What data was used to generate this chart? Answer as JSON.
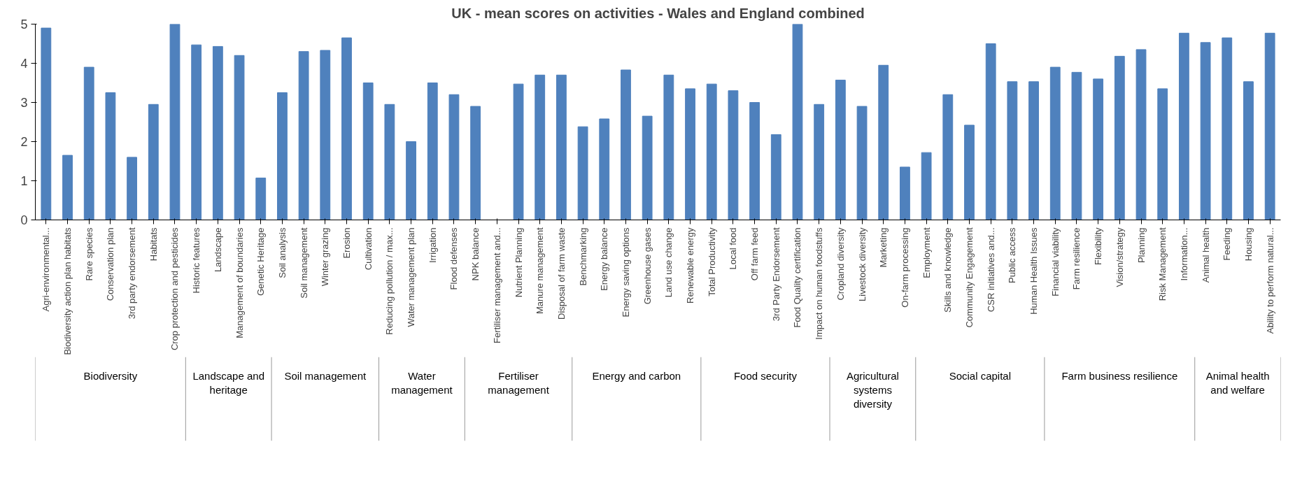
{
  "chart_data": {
    "type": "bar",
    "title": "UK - mean scores on activities - Wales and England combined",
    "categories": [
      "Agri-environmental...",
      "Biodiversity action plan habitats",
      "Rare species",
      "Conservation plan",
      "3rd party endorsement",
      "Habitats",
      "Crop protection and pesticides",
      "Historic features",
      "Landscape",
      "Management of boundaries",
      "Genetic Heritage",
      "Soil analysis",
      "Soil management",
      "Winter grazing",
      "Erosion",
      "Cultivation",
      "Reducing pollution / max...",
      "Water management plan",
      "Irrigation",
      "Flood defenses",
      "NPK balance",
      "Fertiliser management and...",
      "Nutrient Planning",
      "Manure management",
      "Disposal of farm waste",
      "Benchmarking",
      "Energy balance",
      "Energy saving options",
      "Greenhouse gases",
      "Land use change",
      "Renewable energy",
      "Total Productivity",
      "Local food",
      "Off farm feed",
      "3rd Party Endorsement",
      "Food Quality certification",
      "Impact on human foodstuffs",
      "Cropland diversity",
      "Livestock diversity",
      "Marketing",
      "On-farm processing",
      "Employment",
      "Skills and knowledge",
      "Community Engagement",
      "CSR initiatives and...",
      "Public access",
      "Human Health Issues",
      "Financial viability",
      "Farm resilience",
      "Flexibility",
      "Vision/strategy",
      "Planning",
      "Risk Management",
      "Information...",
      "Animal health",
      "Feeding",
      "Housing",
      "Ability to perform natural..."
    ],
    "values": [
      4.9,
      1.65,
      3.9,
      3.25,
      1.6,
      2.95,
      5.0,
      4.47,
      4.43,
      4.2,
      1.07,
      3.25,
      4.3,
      4.33,
      4.65,
      3.5,
      2.95,
      2.0,
      3.5,
      3.2,
      2.9,
      null,
      3.47,
      3.7,
      3.7,
      2.38,
      2.58,
      3.83,
      2.65,
      3.7,
      3.35,
      3.47,
      3.3,
      3.0,
      2.18,
      5.0,
      2.95,
      3.57,
      2.9,
      3.95,
      1.35,
      1.72,
      3.2,
      2.42,
      4.5,
      3.53,
      3.53,
      3.9,
      3.77,
      3.6,
      4.18,
      4.35,
      3.35,
      4.77,
      4.53,
      4.65,
      3.53,
      4.77
    ],
    "color": "#4f81bd",
    "ylim": [
      0,
      5
    ],
    "yticks": [
      0,
      1,
      2,
      3,
      4,
      5
    ],
    "grid": false,
    "annotations": [
      "Biodiversity",
      "Landscape and heritage",
      "Soil management",
      "Water management",
      "Fertiliser management",
      "Energy and carbon",
      "Food security",
      "Agricultural systems diversity",
      "Social capital",
      "Farm business resilience",
      "Animal health and welfare"
    ]
  }
}
